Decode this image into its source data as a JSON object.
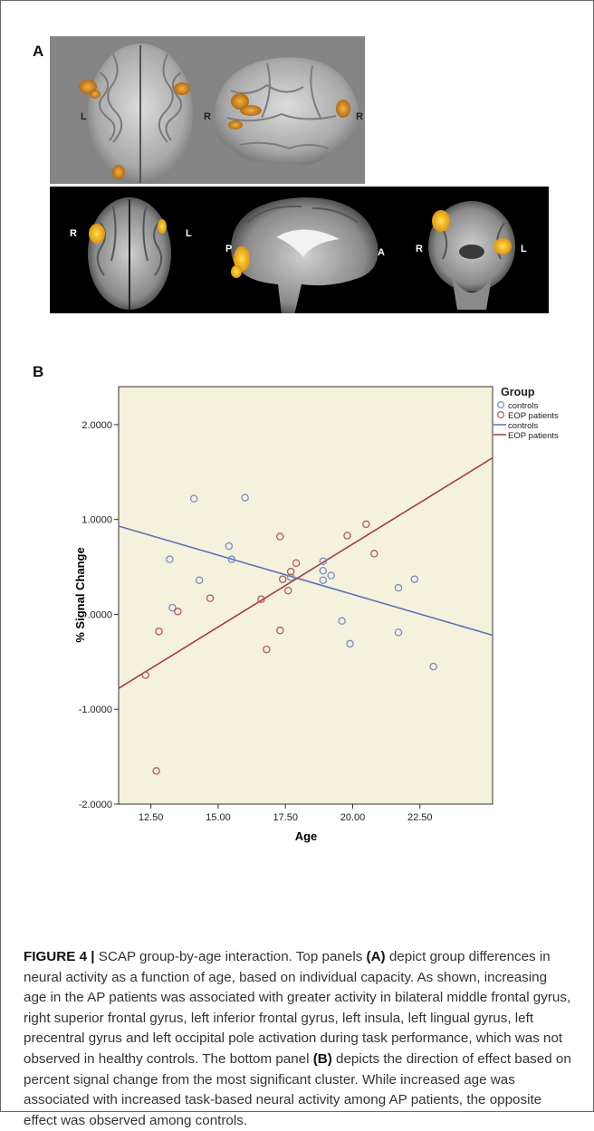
{
  "panels": {
    "a_label": "A",
    "b_label": "B",
    "top_row_labels": {
      "axial_left": "L",
      "axial_right": "R",
      "sagittal_right": "R"
    },
    "bottom_row_labels": {
      "axial_r": "R",
      "axial_l": "L",
      "sag_p": "P",
      "sag_a": "A",
      "cor_r": "R",
      "cor_l": "L"
    }
  },
  "chart_data": {
    "type": "scatter",
    "xlabel": "Age",
    "ylabel": "% Signal Change",
    "xlim": [
      11.3,
      25.2
    ],
    "ylim": [
      -2.0,
      2.4
    ],
    "xticks": [
      "12.50",
      "15.00",
      "17.50",
      "20.00",
      "22.50"
    ],
    "xtick_values": [
      12.5,
      15.0,
      17.5,
      20.0,
      22.5
    ],
    "yticks": [
      "2.0000",
      "1.0000",
      ".0000",
      "-1.0000",
      "-2.0000"
    ],
    "ytick_values": [
      2.0,
      1.0,
      0.0,
      -1.0,
      -2.0
    ],
    "legend": {
      "title": "Group",
      "position": "top-right",
      "entries": [
        {
          "label": "controls",
          "kind": "marker",
          "color": "#7b8cc6"
        },
        {
          "label": "EOP patients",
          "kind": "marker",
          "color": "#b45a5a"
        },
        {
          "label": "controls",
          "kind": "line",
          "color": "#5a72b6"
        },
        {
          "label": "EOP patients",
          "kind": "line",
          "color": "#a83c3c"
        }
      ]
    },
    "series": [
      {
        "name": "controls",
        "color": "#7b8cc6",
        "points": [
          [
            14.1,
            1.22
          ],
          [
            16.0,
            1.23
          ],
          [
            15.4,
            0.72
          ],
          [
            13.2,
            0.58
          ],
          [
            15.5,
            0.58
          ],
          [
            14.3,
            0.36
          ],
          [
            13.3,
            0.07
          ],
          [
            18.9,
            0.56
          ],
          [
            18.9,
            0.46
          ],
          [
            19.2,
            0.41
          ],
          [
            18.9,
            0.36
          ],
          [
            17.7,
            0.39
          ],
          [
            22.3,
            0.37
          ],
          [
            21.7,
            0.28
          ],
          [
            19.6,
            -0.07
          ],
          [
            19.9,
            -0.31
          ],
          [
            21.7,
            -0.19
          ],
          [
            23.0,
            -0.55
          ]
        ]
      },
      {
        "name": "EOP patients",
        "color": "#b45a5a",
        "points": [
          [
            20.5,
            0.95
          ],
          [
            17.3,
            0.82
          ],
          [
            19.8,
            0.83
          ],
          [
            20.8,
            0.64
          ],
          [
            17.9,
            0.54
          ],
          [
            17.7,
            0.45
          ],
          [
            17.4,
            0.37
          ],
          [
            17.6,
            0.25
          ],
          [
            14.7,
            0.17
          ],
          [
            16.6,
            0.16
          ],
          [
            13.5,
            0.03
          ],
          [
            12.8,
            -0.18
          ],
          [
            17.3,
            -0.17
          ],
          [
            16.8,
            -0.37
          ],
          [
            12.3,
            -0.64
          ],
          [
            12.7,
            -1.65
          ]
        ]
      }
    ],
    "fit_lines": [
      {
        "name": "controls",
        "color": "#5a72b6",
        "x": [
          11.3,
          25.2
        ],
        "y": [
          0.93,
          -0.22
        ]
      },
      {
        "name": "EOP patients",
        "color": "#a83c3c",
        "x": [
          11.3,
          25.2
        ],
        "y": [
          -0.78,
          1.65
        ]
      }
    ]
  },
  "caption": {
    "label": "FIGURE 4 |",
    "t1": " SCAP group-by-age interaction. Top panels ",
    "b1": "(A)",
    "t2": " depict group differences in neural activity as a function of age, based on individual capacity. As shown, increasing age in the AP patients was associated with greater activity in bilateral middle frontal gyrus, right superior frontal gyrus, left inferior frontal gyrus, left insula, left lingual gyrus, left precentral gyrus and left occipital pole activation during task performance, which was not observed in healthy controls. The bottom panel ",
    "b2": "(B)",
    "t3": " depicts the direction of effect based on percent signal change from the most significant cluster. While increased age was associated with increased task-based neural activity among AP patients, the opposite effect was observed among controls."
  }
}
